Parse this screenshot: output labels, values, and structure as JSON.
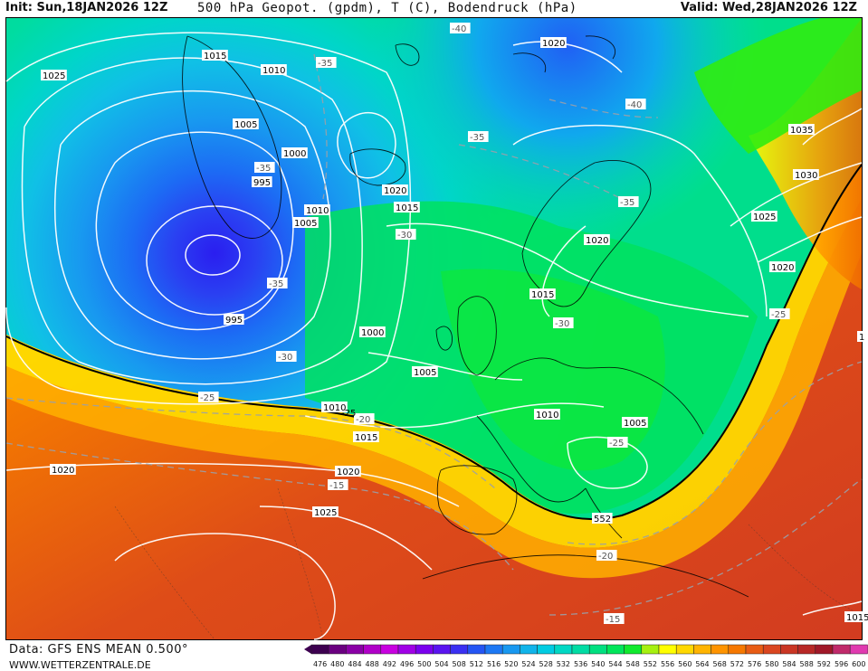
{
  "header": {
    "init": "Init: Sun,18JAN2026 12Z",
    "title": "500 hPa Geopot. (gpdm), T (C), Bodendruck (hPa)",
    "valid": "Valid: Wed,28JAN2026 12Z"
  },
  "footer": {
    "source": "Data: GFS ENS MEAN 0.500°",
    "website": "WWW.WETTERZENTRALE.DE"
  },
  "legend": {
    "values": [
      "476",
      "480",
      "484",
      "488",
      "492",
      "496",
      "500",
      "504",
      "508",
      "512",
      "516",
      "520",
      "524",
      "528",
      "532",
      "536",
      "540",
      "544",
      "548",
      "552",
      "556",
      "560",
      "564",
      "568",
      "572",
      "576",
      "580",
      "584",
      "588",
      "592",
      "596",
      "600"
    ],
    "colors": [
      "#3d0050",
      "#6a0080",
      "#8a00a6",
      "#b000c8",
      "#c800e0",
      "#a000e6",
      "#7a00ee",
      "#5a14f0",
      "#3a30f2",
      "#2455f4",
      "#1c78f4",
      "#1898f0",
      "#10b4ea",
      "#00cce2",
      "#00d8c4",
      "#00dca4",
      "#00e080",
      "#00e65a",
      "#10ea2e",
      "#a6f010",
      "#ffff00",
      "#ffd800",
      "#ffb400",
      "#ff9400",
      "#f67800",
      "#e85c14",
      "#da4620",
      "#ca3624",
      "#b82826",
      "#a01828",
      "#c02a6a",
      "#e03ab0"
    ]
  },
  "map": {
    "pressure_labels": [
      {
        "text": "1025"
      },
      {
        "text": "1015"
      },
      {
        "text": "1010"
      },
      {
        "text": "1005"
      },
      {
        "text": "1000"
      },
      {
        "text": "995"
      },
      {
        "text": "1010"
      },
      {
        "text": "1005"
      },
      {
        "text": "995"
      },
      {
        "text": "1020"
      },
      {
        "text": "1015"
      },
      {
        "text": "1020"
      },
      {
        "text": "1035"
      },
      {
        "text": "1030"
      },
      {
        "text": "1025"
      },
      {
        "text": "1020"
      },
      {
        "text": "1020"
      },
      {
        "text": "1015"
      },
      {
        "text": "1000"
      },
      {
        "text": "1005"
      },
      {
        "text": "1010"
      },
      {
        "text": "1015"
      },
      {
        "text": "1010"
      },
      {
        "text": "1005"
      },
      {
        "text": "1020"
      },
      {
        "text": "1020"
      },
      {
        "text": "1025"
      },
      {
        "text": "1015"
      }
    ],
    "temp_labels": [
      {
        "text": "-40"
      },
      {
        "text": "-35"
      },
      {
        "text": "-40"
      },
      {
        "text": "-35"
      },
      {
        "text": "-35"
      },
      {
        "text": "-35"
      },
      {
        "text": "-30"
      },
      {
        "text": "-35"
      },
      {
        "text": "-30"
      },
      {
        "text": "-30"
      },
      {
        "text": "-25"
      },
      {
        "text": "-20"
      },
      {
        "text": "-25"
      },
      {
        "text": "-25"
      },
      {
        "text": "-15"
      },
      {
        "text": "-20"
      },
      {
        "text": "-15"
      }
    ],
    "extra_labels": [
      "-25",
      "552",
      "1"
    ]
  }
}
